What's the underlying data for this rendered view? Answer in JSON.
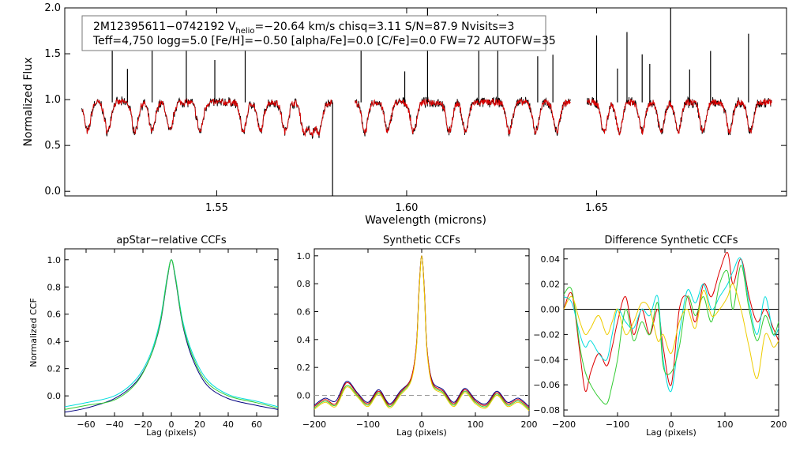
{
  "info_box": {
    "line1_pre": "2M12395611−0742192  V",
    "line1_sub": "helio",
    "line1_post": "=−20.64 km/s  chisq=3.11  S/N=87.9  Nvisits=3",
    "line2": "Teff=4,750 logg=5.0 [Fe/H]=−0.50 [alpha/Fe]=0.0 [C/Fe]=0.0 FW=72 AUTOFW=35"
  },
  "colors": {
    "observed": "#000000",
    "model": "#dd0000",
    "ccf_visits": [
      "#000080",
      "#00dddd",
      "#33cc33",
      "#dd0000",
      "#eecc00"
    ]
  },
  "chart_data": [
    {
      "type": "line",
      "title": "",
      "xlabel": "Wavelength (microns)",
      "ylabel": "Normalized Flux",
      "xlim": [
        1.51,
        1.7
      ],
      "ylim": [
        -0.05,
        2.0
      ],
      "xticks": [
        "1.55",
        "1.60",
        "1.65"
      ],
      "yticks": [
        "0.0",
        "0.5",
        "1.0",
        "1.5",
        "2.0"
      ],
      "segments_x": [
        [
          1.5145,
          1.5805
        ],
        [
          1.5864,
          1.6431
        ],
        [
          1.6475,
          1.6961
        ]
      ],
      "continuum_level": 0.97,
      "series": [
        {
          "role": "observed",
          "emission_spikes_x": [
            1.5225,
            1.5265,
            1.533,
            1.542,
            1.5495,
            1.5575,
            1.588,
            1.5995,
            1.6055,
            1.619,
            1.624,
            1.6345,
            1.6385,
            1.65,
            1.6555,
            1.658,
            1.662,
            1.664,
            1.6695,
            1.6745,
            1.68,
            1.69
          ],
          "deep_dip": {
            "x": 1.5805,
            "y": -0.05
          }
        },
        {
          "role": "model",
          "absorption_x": [
            1.516,
            1.5213,
            1.5285,
            1.533,
            1.5377,
            1.5456,
            1.557,
            1.5615,
            1.568,
            1.573,
            1.575,
            1.577,
            1.589,
            1.595,
            1.6018,
            1.6112,
            1.6155,
            1.627,
            1.634,
            1.6395,
            1.652,
            1.656,
            1.662,
            1.667,
            1.6715,
            1.678,
            1.685,
            1.6905
          ]
        }
      ]
    },
    {
      "type": "line",
      "title": "apStar−relative CCFs",
      "xlabel": "Lag (pixels)",
      "ylabel": "Normalized CCF",
      "xlim": [
        -75,
        75
      ],
      "ylim": [
        -0.15,
        1.08
      ],
      "xticks": [
        "−60",
        "−40",
        "−20",
        "0",
        "20",
        "40",
        "60"
      ],
      "yticks": [
        "0.0",
        "0.2",
        "0.4",
        "0.6",
        "0.8",
        "1.0"
      ],
      "series_x": [
        -75,
        -60,
        -40,
        -25,
        -15,
        -8,
        -3,
        0,
        3,
        8,
        15,
        25,
        40,
        60,
        75
      ],
      "series": [
        {
          "color_index": 0,
          "values": [
            -0.12,
            -0.09,
            -0.02,
            0.1,
            0.28,
            0.52,
            0.85,
            1.0,
            0.85,
            0.52,
            0.27,
            0.08,
            -0.02,
            -0.07,
            -0.1
          ]
        },
        {
          "color_index": 1,
          "values": [
            -0.08,
            -0.05,
            0.0,
            0.12,
            0.3,
            0.55,
            0.87,
            1.0,
            0.87,
            0.55,
            0.31,
            0.12,
            0.01,
            -0.04,
            -0.08
          ]
        },
        {
          "color_index": 2,
          "values": [
            -0.1,
            -0.07,
            -0.03,
            0.09,
            0.28,
            0.53,
            0.86,
            1.0,
            0.86,
            0.53,
            0.29,
            0.1,
            0.0,
            -0.05,
            -0.09
          ]
        }
      ]
    },
    {
      "type": "line",
      "title": "Synthetic CCFs",
      "xlabel": "Lag (pixels)",
      "ylabel": "",
      "xlim": [
        -200,
        200
      ],
      "ylim": [
        -0.15,
        1.05
      ],
      "xticks": [
        "−200",
        "−100",
        "0",
        "100",
        "200"
      ],
      "yticks": [
        "0.0",
        "0.2",
        "0.4",
        "0.6",
        "0.8",
        "1.0"
      ],
      "zero_line": true,
      "series_x": [
        -200,
        -180,
        -160,
        -140,
        -120,
        -100,
        -80,
        -60,
        -40,
        -20,
        -10,
        -5,
        0,
        5,
        10,
        20,
        40,
        60,
        80,
        100,
        120,
        140,
        160,
        180,
        200
      ],
      "series": [
        {
          "color_index": 0,
          "values": [
            -0.07,
            -0.02,
            -0.04,
            0.1,
            0.02,
            -0.05,
            0.04,
            -0.06,
            0.03,
            0.12,
            0.35,
            0.75,
            1.0,
            0.75,
            0.33,
            0.1,
            0.04,
            -0.05,
            0.05,
            -0.03,
            -0.06,
            0.03,
            -0.05,
            -0.02,
            -0.08
          ]
        },
        {
          "color_index": 2,
          "values": [
            -0.09,
            -0.04,
            -0.07,
            0.07,
            0.0,
            -0.07,
            0.02,
            -0.08,
            0.01,
            0.11,
            0.34,
            0.74,
            1.0,
            0.74,
            0.32,
            0.08,
            0.02,
            -0.07,
            0.03,
            -0.05,
            -0.08,
            0.01,
            -0.07,
            -0.04,
            -0.1
          ]
        },
        {
          "color_index": 3,
          "values": [
            -0.08,
            -0.03,
            -0.06,
            0.09,
            0.01,
            -0.06,
            0.03,
            -0.07,
            0.02,
            0.12,
            0.35,
            0.75,
            1.0,
            0.75,
            0.33,
            0.09,
            0.03,
            -0.06,
            0.04,
            -0.04,
            -0.07,
            0.02,
            -0.06,
            -0.03,
            -0.09
          ]
        },
        {
          "color_index": 4,
          "values": [
            -0.1,
            -0.05,
            -0.08,
            0.06,
            -0.01,
            -0.08,
            0.01,
            -0.09,
            0.0,
            0.1,
            0.33,
            0.73,
            1.0,
            0.73,
            0.31,
            0.07,
            0.01,
            -0.08,
            0.02,
            -0.06,
            -0.09,
            0.0,
            -0.08,
            -0.05,
            -0.11
          ]
        }
      ]
    },
    {
      "type": "line",
      "title": "Difference Synthetic CCFs",
      "xlabel": "Lag (pixels)",
      "ylabel": "",
      "xlim": [
        -200,
        200
      ],
      "ylim": [
        -0.085,
        0.048
      ],
      "xticks": [
        "−200",
        "−100",
        "0",
        "100",
        "200"
      ],
      "yticks": [
        "−0.08",
        "−0.06",
        "−0.04",
        "−0.02",
        "0.00",
        "0.02",
        "0.04"
      ],
      "zero_line": true,
      "series_x": [
        -200,
        -185,
        -170,
        -160,
        -150,
        -135,
        -120,
        -110,
        -100,
        -85,
        -70,
        -55,
        -40,
        -25,
        -15,
        0,
        15,
        30,
        45,
        60,
        75,
        90,
        105,
        115,
        130,
        145,
        160,
        175,
        190,
        200
      ],
      "series": [
        {
          "color_index": 3,
          "values": [
            0.0,
            0.012,
            -0.035,
            -0.065,
            -0.05,
            -0.035,
            -0.045,
            -0.03,
            -0.01,
            0.01,
            -0.02,
            0.0,
            -0.02,
            0.0,
            -0.03,
            -0.06,
            0.0,
            0.01,
            -0.01,
            0.02,
            0.01,
            0.03,
            0.045,
            0.02,
            0.04,
            0.01,
            -0.01,
            0.0,
            -0.015,
            -0.025
          ]
        },
        {
          "color_index": 1,
          "values": [
            0.01,
            0.005,
            -0.02,
            -0.03,
            -0.025,
            -0.035,
            -0.04,
            -0.02,
            0.0,
            -0.01,
            -0.015,
            0.0,
            -0.005,
            0.01,
            -0.04,
            -0.065,
            -0.02,
            0.015,
            0.005,
            0.02,
            0.0,
            0.01,
            0.02,
            0.03,
            0.04,
            0.005,
            -0.02,
            0.01,
            -0.02,
            -0.015
          ]
        },
        {
          "color_index": 2,
          "values": [
            0.012,
            0.015,
            -0.03,
            -0.05,
            -0.06,
            -0.07,
            -0.075,
            -0.06,
            -0.04,
            0.0,
            -0.025,
            -0.01,
            -0.02,
            0.005,
            -0.045,
            -0.05,
            -0.03,
            0.01,
            -0.005,
            0.01,
            -0.01,
            0.02,
            0.03,
            0.0,
            0.035,
            0.0,
            -0.025,
            -0.005,
            -0.02,
            -0.01
          ]
        },
        {
          "color_index": 4,
          "values": [
            0.0,
            0.01,
            -0.01,
            -0.02,
            -0.015,
            -0.005,
            -0.02,
            -0.01,
            0.0,
            -0.02,
            -0.01,
            0.005,
            0.0,
            -0.025,
            -0.02,
            -0.035,
            -0.01,
            0.0,
            -0.015,
            0.015,
            -0.005,
            0.0,
            0.01,
            0.02,
            0.0,
            -0.03,
            -0.055,
            -0.02,
            -0.03,
            -0.025
          ]
        }
      ]
    }
  ]
}
